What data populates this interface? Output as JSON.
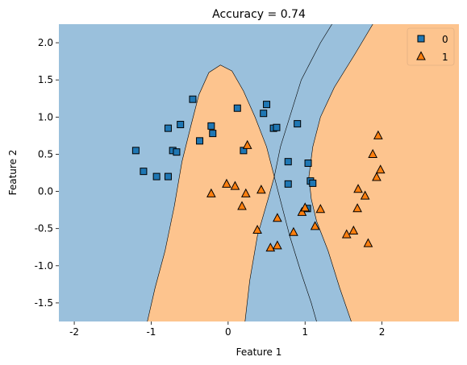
{
  "chart_data": {
    "type": "scatter",
    "title": "Accuracy = 0.74",
    "xlabel": "Feature 1",
    "ylabel": "Feature 2",
    "xlim": [
      -2.2,
      3.0
    ],
    "ylim": [
      -1.75,
      2.25
    ],
    "xticks": [
      -2,
      -1,
      0,
      1,
      2
    ],
    "yticks": [
      -1.5,
      -1.0,
      -0.5,
      0.0,
      0.5,
      1.0,
      1.5,
      2.0
    ],
    "grid": false,
    "legend_position": "top-right",
    "region_colors": {
      "0": "#9ac0dc",
      "1": "#fdc48e"
    },
    "boundaries": [
      {
        "name": "inner",
        "points": [
          [
            -1.05,
            -1.75
          ],
          [
            -0.95,
            -1.3
          ],
          [
            -0.82,
            -0.8
          ],
          [
            -0.7,
            -0.2
          ],
          [
            -0.6,
            0.4
          ],
          [
            -0.48,
            0.9
          ],
          [
            -0.38,
            1.3
          ],
          [
            -0.25,
            1.6
          ],
          [
            -0.1,
            1.7
          ],
          [
            0.05,
            1.62
          ],
          [
            0.2,
            1.35
          ],
          [
            0.35,
            1.0
          ],
          [
            0.5,
            0.6
          ],
          [
            0.65,
            0.0
          ],
          [
            0.8,
            -0.6
          ],
          [
            0.95,
            -1.1
          ],
          [
            1.08,
            -1.5
          ],
          [
            1.15,
            -1.75
          ]
        ]
      },
      {
        "name": "left-outer",
        "points": [
          [
            0.22,
            -1.75
          ],
          [
            0.28,
            -1.2
          ],
          [
            0.38,
            -0.6
          ],
          [
            0.52,
            -0.1
          ],
          [
            0.6,
            0.2
          ],
          [
            0.68,
            0.6
          ],
          [
            0.8,
            1.0
          ],
          [
            0.95,
            1.5
          ],
          [
            1.2,
            2.0
          ],
          [
            1.35,
            2.25
          ]
        ]
      },
      {
        "name": "right-outer",
        "points": [
          [
            1.6,
            -1.75
          ],
          [
            1.45,
            -1.3
          ],
          [
            1.3,
            -0.8
          ],
          [
            1.15,
            -0.4
          ],
          [
            1.08,
            -0.1
          ],
          [
            1.05,
            0.2
          ],
          [
            1.1,
            0.6
          ],
          [
            1.2,
            1.0
          ],
          [
            1.38,
            1.4
          ],
          [
            1.65,
            1.85
          ],
          [
            1.88,
            2.25
          ]
        ]
      }
    ],
    "series": [
      {
        "name": "0",
        "marker": "square",
        "color": "#1f77b4",
        "points": [
          [
            -1.2,
            0.55
          ],
          [
            -1.1,
            0.27
          ],
          [
            -0.93,
            0.2
          ],
          [
            -0.78,
            0.2
          ],
          [
            -0.72,
            0.55
          ],
          [
            -0.67,
            0.53
          ],
          [
            -0.78,
            0.85
          ],
          [
            -0.62,
            0.9
          ],
          [
            -0.46,
            1.24
          ],
          [
            -0.37,
            0.68
          ],
          [
            -0.22,
            0.88
          ],
          [
            -0.2,
            0.78
          ],
          [
            0.12,
            1.12
          ],
          [
            0.2,
            0.55
          ],
          [
            0.46,
            1.05
          ],
          [
            0.5,
            1.17
          ],
          [
            0.59,
            0.85
          ],
          [
            0.63,
            0.86
          ],
          [
            0.78,
            0.4
          ],
          [
            0.78,
            0.1
          ],
          [
            0.9,
            0.91
          ],
          [
            1.04,
            0.38
          ],
          [
            1.07,
            0.14
          ],
          [
            1.1,
            0.11
          ],
          [
            1.03,
            -0.23
          ]
        ]
      },
      {
        "name": "1",
        "marker": "triangle",
        "color": "#ff7f0e",
        "points": [
          [
            -0.22,
            -0.03
          ],
          [
            -0.02,
            0.1
          ],
          [
            0.09,
            0.07
          ],
          [
            0.18,
            -0.2
          ],
          [
            0.23,
            -0.03
          ],
          [
            0.25,
            0.62
          ],
          [
            0.38,
            -0.52
          ],
          [
            0.43,
            0.02
          ],
          [
            0.55,
            -0.76
          ],
          [
            0.64,
            -0.36
          ],
          [
            0.64,
            -0.73
          ],
          [
            0.85,
            -0.55
          ],
          [
            0.96,
            -0.28
          ],
          [
            1.0,
            -0.22
          ],
          [
            1.13,
            -0.47
          ],
          [
            1.2,
            -0.24
          ],
          [
            1.54,
            -0.58
          ],
          [
            1.63,
            -0.53
          ],
          [
            1.68,
            -0.23
          ],
          [
            1.69,
            0.03
          ],
          [
            1.78,
            -0.06
          ],
          [
            1.82,
            -0.7
          ],
          [
            1.88,
            0.5
          ],
          [
            1.93,
            0.19
          ],
          [
            1.95,
            0.75
          ],
          [
            1.98,
            0.29
          ]
        ]
      }
    ],
    "legend": [
      {
        "label": "0",
        "marker": "square",
        "color": "#1f77b4"
      },
      {
        "label": "1",
        "marker": "triangle",
        "color": "#ff7f0e"
      }
    ]
  }
}
